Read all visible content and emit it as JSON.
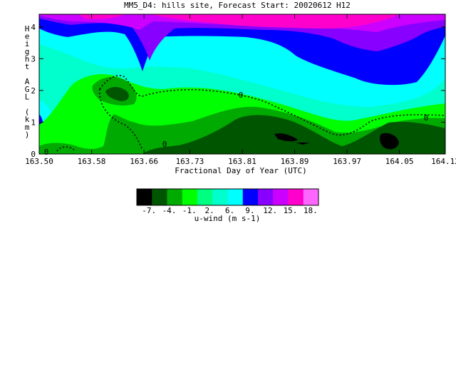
{
  "chart_data": {
    "type": "heatmap",
    "title": "MM5_D4: hills site,  Forecast Start: 20020612 H12",
    "xlabel": "Fractional Day of Year (UTC)",
    "ylabel": "Height AGL (km)",
    "xlim": [
      163.5,
      164.12
    ],
    "ylim": [
      0,
      4.4
    ],
    "x_ticks": [
      "163.50",
      "163.58",
      "163.66",
      "163.73",
      "163.81",
      "163.89",
      "163.97",
      "164.05",
      "164.12"
    ],
    "y_ticks": [
      "0",
      "1",
      "2",
      "3",
      "4"
    ],
    "contour_labels": [
      "0",
      "0",
      "0",
      "0"
    ],
    "colorbar": {
      "title": "u-wind (m s-1)",
      "tick_labels": [
        "-7.",
        "-4.",
        "-1.",
        "2.",
        "6.",
        "9.",
        "12.",
        "15.",
        "18."
      ],
      "colors": [
        "#000000",
        "#005500",
        "#00aa00",
        "#00ff00",
        "#00ff80",
        "#00ffcc",
        "#00ffff",
        "#0000ff",
        "#8800ff",
        "#cc00ff",
        "#ff00cc",
        "#ff66ff"
      ]
    }
  }
}
